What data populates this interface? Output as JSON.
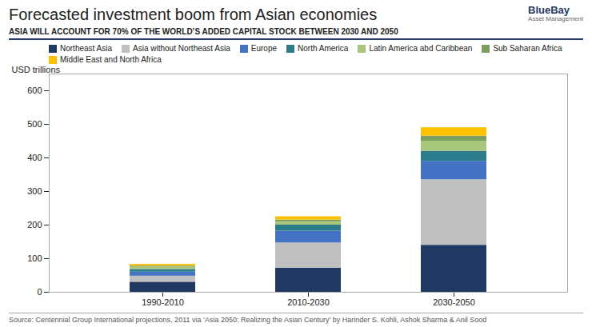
{
  "chart_data": {
    "type": "bar",
    "stacked": true,
    "title": "Forecasted investment boom from Asian economies",
    "subtitle": "ASIA WILL ACCOUNT FOR 70% OF THE WORLD’S ADDED CAPITAL STOCK BETWEEN 2030 AND 2050",
    "ylabel": "USD trillions",
    "source": "Source: Centennial Group International projections, 2011 via ‘Asia 2050: Realizing the Asian Century’ by Harinder S. Kohli, Ashok Sharma & Anil Sood",
    "annotations": [
      "BlueBay",
      "Asset Management"
    ],
    "categories": [
      "1990-2010",
      "2010-2030",
      "2030-2050"
    ],
    "series": [
      {
        "name": "Northeast Asia",
        "color": "#1F3864",
        "values": [
          30,
          72,
          140
        ]
      },
      {
        "name": "Asia without Northeast Asia",
        "color": "#BFBFBF",
        "values": [
          18,
          75,
          195
        ]
      },
      {
        "name": "Europe",
        "color": "#4472C4",
        "values": [
          12,
          35,
          55
        ]
      },
      {
        "name": "North America",
        "color": "#2D7C8C",
        "values": [
          8,
          18,
          30
        ]
      },
      {
        "name": "Latin America abd Caribbean",
        "color": "#A9C77A",
        "values": [
          7,
          10,
          30
        ]
      },
      {
        "name": "Sub Saharan Africa",
        "color": "#7B9E5E",
        "values": [
          3,
          5,
          15
        ]
      },
      {
        "name": "Middle East and North Africa",
        "color": "#FFC000",
        "values": [
          5,
          10,
          25
        ]
      }
    ],
    "ylim": [
      0,
      650
    ],
    "yticks": [
      0,
      100,
      200,
      300,
      400,
      500,
      600
    ],
    "grid": false,
    "legend": "top"
  }
}
